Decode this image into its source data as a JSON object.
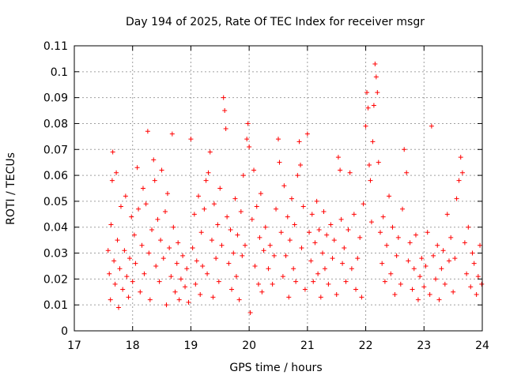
{
  "chart_data": {
    "type": "scatter",
    "title": "Day 194 of 2025, Rate Of TEC Index for receiver msgr",
    "xlabel": "GPS time / hours",
    "ylabel": "ROTI / TECUs",
    "xlim": [
      17,
      24
    ],
    "ylim": [
      0,
      0.11
    ],
    "x_ticks": [
      "17",
      "18",
      "19",
      "20",
      "21",
      "22",
      "23",
      "24"
    ],
    "y_ticks": [
      "0",
      "0.01",
      "0.02",
      "0.03",
      "0.04",
      "0.05",
      "0.06",
      "0.07",
      "0.08",
      "0.09",
      "0.1",
      "0.11"
    ],
    "grid": true,
    "marker": "+",
    "color": "#ff0000",
    "series": [
      {
        "points": [
          [
            17.58,
            0.031
          ],
          [
            17.6,
            0.022
          ],
          [
            17.62,
            0.012
          ],
          [
            17.63,
            0.041
          ],
          [
            17.65,
            0.058
          ],
          [
            17.66,
            0.069
          ],
          [
            17.68,
            0.027
          ],
          [
            17.7,
            0.018
          ],
          [
            17.72,
            0.061
          ],
          [
            17.74,
            0.035
          ],
          [
            17.76,
            0.009
          ],
          [
            17.78,
            0.024
          ],
          [
            17.8,
            0.048
          ],
          [
            17.83,
            0.016
          ],
          [
            17.86,
            0.031
          ],
          [
            17.88,
            0.052
          ],
          [
            17.9,
            0.021
          ],
          [
            17.93,
            0.013
          ],
          [
            17.95,
            0.028
          ],
          [
            17.98,
            0.044
          ],
          [
            18.0,
            0.019
          ],
          [
            18.03,
            0.037
          ],
          [
            18.05,
            0.026
          ],
          [
            18.08,
            0.063
          ],
          [
            18.1,
            0.047
          ],
          [
            18.13,
            0.015
          ],
          [
            18.16,
            0.033
          ],
          [
            18.18,
            0.055
          ],
          [
            18.2,
            0.022
          ],
          [
            18.23,
            0.049
          ],
          [
            18.26,
            0.077
          ],
          [
            18.28,
            0.03
          ],
          [
            18.3,
            0.012
          ],
          [
            18.33,
            0.039
          ],
          [
            18.36,
            0.066
          ],
          [
            18.38,
            0.058
          ],
          [
            18.4,
            0.025
          ],
          [
            18.43,
            0.043
          ],
          [
            18.46,
            0.019
          ],
          [
            18.48,
            0.035
          ],
          [
            18.5,
            0.062
          ],
          [
            18.53,
            0.028
          ],
          [
            18.56,
            0.046
          ],
          [
            18.58,
            0.01
          ],
          [
            18.6,
            0.053
          ],
          [
            18.63,
            0.032
          ],
          [
            18.66,
            0.021
          ],
          [
            18.68,
            0.076
          ],
          [
            18.7,
            0.04
          ],
          [
            18.73,
            0.015
          ],
          [
            18.76,
            0.026
          ],
          [
            18.78,
            0.034
          ],
          [
            18.8,
            0.012
          ],
          [
            18.83,
            0.02
          ],
          [
            18.86,
            0.029
          ],
          [
            18.9,
            0.017
          ],
          [
            18.93,
            0.024
          ],
          [
            18.96,
            0.011
          ],
          [
            19.0,
            0.074
          ],
          [
            19.03,
            0.032
          ],
          [
            19.06,
            0.045
          ],
          [
            19.08,
            0.018
          ],
          [
            19.1,
            0.027
          ],
          [
            19.13,
            0.052
          ],
          [
            19.16,
            0.014
          ],
          [
            19.18,
            0.038
          ],
          [
            19.2,
            0.025
          ],
          [
            19.23,
            0.047
          ],
          [
            19.26,
            0.058
          ],
          [
            19.28,
            0.022
          ],
          [
            19.3,
            0.061
          ],
          [
            19.33,
            0.069
          ],
          [
            19.36,
            0.035
          ],
          [
            19.38,
            0.013
          ],
          [
            19.4,
            0.049
          ],
          [
            19.43,
            0.028
          ],
          [
            19.46,
            0.041
          ],
          [
            19.48,
            0.019
          ],
          [
            19.5,
            0.055
          ],
          [
            19.53,
            0.033
          ],
          [
            19.56,
            0.09
          ],
          [
            19.58,
            0.085
          ],
          [
            19.6,
            0.078
          ],
          [
            19.62,
            0.044
          ],
          [
            19.65,
            0.026
          ],
          [
            19.68,
            0.039
          ],
          [
            19.7,
            0.016
          ],
          [
            19.73,
            0.03
          ],
          [
            19.76,
            0.051
          ],
          [
            19.78,
            0.021
          ],
          [
            19.8,
            0.037
          ],
          [
            19.83,
            0.012
          ],
          [
            19.86,
            0.046
          ],
          [
            19.88,
            0.029
          ],
          [
            19.9,
            0.06
          ],
          [
            19.93,
            0.033
          ],
          [
            19.96,
            0.074
          ],
          [
            19.98,
            0.08
          ],
          [
            20.0,
            0.071
          ],
          [
            20.02,
            0.007
          ],
          [
            20.05,
            0.043
          ],
          [
            20.08,
            0.062
          ],
          [
            20.1,
            0.025
          ],
          [
            20.13,
            0.048
          ],
          [
            20.16,
            0.018
          ],
          [
            20.18,
            0.036
          ],
          [
            20.2,
            0.053
          ],
          [
            20.22,
            0.015
          ],
          [
            20.25,
            0.031
          ],
          [
            20.28,
            0.04
          ],
          [
            20.33,
            0.024
          ],
          [
            20.36,
            0.033
          ],
          [
            20.4,
            0.018
          ],
          [
            20.43,
            0.029
          ],
          [
            20.46,
            0.047
          ],
          [
            20.5,
            0.074
          ],
          [
            20.52,
            0.065
          ],
          [
            20.55,
            0.038
          ],
          [
            20.58,
            0.021
          ],
          [
            20.6,
            0.056
          ],
          [
            20.63,
            0.029
          ],
          [
            20.66,
            0.044
          ],
          [
            20.68,
            0.013
          ],
          [
            20.7,
            0.035
          ],
          [
            20.73,
            0.051
          ],
          [
            20.76,
            0.024
          ],
          [
            20.78,
            0.041
          ],
          [
            20.8,
            0.019
          ],
          [
            20.83,
            0.06
          ],
          [
            20.86,
            0.073
          ],
          [
            20.88,
            0.064
          ],
          [
            20.9,
            0.032
          ],
          [
            20.93,
            0.048
          ],
          [
            20.96,
            0.016
          ],
          [
            21.0,
            0.076
          ],
          [
            21.03,
            0.038
          ],
          [
            21.06,
            0.027
          ],
          [
            21.08,
            0.045
          ],
          [
            21.1,
            0.019
          ],
          [
            21.13,
            0.034
          ],
          [
            21.16,
            0.05
          ],
          [
            21.18,
            0.022
          ],
          [
            21.2,
            0.039
          ],
          [
            21.23,
            0.013
          ],
          [
            21.26,
            0.03
          ],
          [
            21.28,
            0.046
          ],
          [
            21.3,
            0.024
          ],
          [
            21.33,
            0.037
          ],
          [
            21.36,
            0.018
          ],
          [
            21.4,
            0.041
          ],
          [
            21.43,
            0.028
          ],
          [
            21.46,
            0.035
          ],
          [
            21.5,
            0.014
          ],
          [
            21.53,
            0.067
          ],
          [
            21.56,
            0.062
          ],
          [
            21.58,
            0.043
          ],
          [
            21.6,
            0.026
          ],
          [
            21.63,
            0.032
          ],
          [
            21.66,
            0.019
          ],
          [
            21.7,
            0.039
          ],
          [
            21.73,
            0.061
          ],
          [
            21.76,
            0.024
          ],
          [
            21.8,
            0.045
          ],
          [
            21.83,
            0.016
          ],
          [
            21.86,
            0.028
          ],
          [
            21.9,
            0.036
          ],
          [
            21.93,
            0.013
          ],
          [
            21.96,
            0.049
          ],
          [
            22.0,
            0.079
          ],
          [
            22.02,
            0.092
          ],
          [
            22.04,
            0.086
          ],
          [
            22.06,
            0.064
          ],
          [
            22.08,
            0.058
          ],
          [
            22.1,
            0.042
          ],
          [
            22.12,
            0.073
          ],
          [
            22.14,
            0.087
          ],
          [
            22.16,
            0.103
          ],
          [
            22.18,
            0.098
          ],
          [
            22.2,
            0.092
          ],
          [
            22.22,
            0.065
          ],
          [
            22.25,
            0.038
          ],
          [
            22.28,
            0.026
          ],
          [
            22.3,
            0.044
          ],
          [
            22.33,
            0.019
          ],
          [
            22.36,
            0.033
          ],
          [
            22.4,
            0.052
          ],
          [
            22.43,
            0.022
          ],
          [
            22.46,
            0.04
          ],
          [
            22.5,
            0.014
          ],
          [
            22.53,
            0.029
          ],
          [
            22.56,
            0.036
          ],
          [
            22.6,
            0.018
          ],
          [
            22.63,
            0.047
          ],
          [
            22.66,
            0.07
          ],
          [
            22.7,
            0.061
          ],
          [
            22.73,
            0.027
          ],
          [
            22.76,
            0.034
          ],
          [
            22.8,
            0.016
          ],
          [
            22.83,
            0.024
          ],
          [
            22.86,
            0.037
          ],
          [
            22.9,
            0.012
          ],
          [
            22.93,
            0.021
          ],
          [
            22.96,
            0.028
          ],
          [
            23.0,
            0.017
          ],
          [
            23.03,
            0.025
          ],
          [
            23.06,
            0.038
          ],
          [
            23.1,
            0.014
          ],
          [
            23.13,
            0.079
          ],
          [
            23.16,
            0.029
          ],
          [
            23.2,
            0.02
          ],
          [
            23.23,
            0.033
          ],
          [
            23.26,
            0.012
          ],
          [
            23.3,
            0.024
          ],
          [
            23.33,
            0.031
          ],
          [
            23.36,
            0.018
          ],
          [
            23.4,
            0.045
          ],
          [
            23.43,
            0.027
          ],
          [
            23.46,
            0.036
          ],
          [
            23.5,
            0.015
          ],
          [
            23.53,
            0.028
          ],
          [
            23.56,
            0.051
          ],
          [
            23.6,
            0.058
          ],
          [
            23.63,
            0.067
          ],
          [
            23.66,
            0.061
          ],
          [
            23.7,
            0.034
          ],
          [
            23.73,
            0.022
          ],
          [
            23.76,
            0.04
          ],
          [
            23.8,
            0.017
          ],
          [
            23.83,
            0.03
          ],
          [
            23.86,
            0.026
          ],
          [
            23.9,
            0.014
          ],
          [
            23.93,
            0.021
          ],
          [
            23.96,
            0.033
          ],
          [
            23.99,
            0.018
          ]
        ]
      }
    ]
  }
}
